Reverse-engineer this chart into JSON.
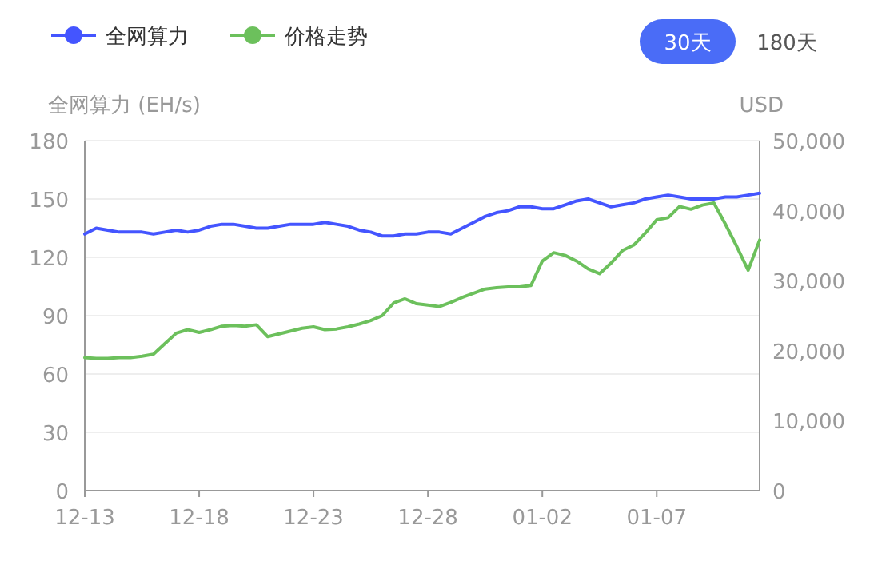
{
  "chart_data": {
    "type": "line",
    "ylabel": "全网算力 (EH/s)",
    "y2label": "USD",
    "annotations": [
      "30天",
      "180天"
    ],
    "categories": [
      "12-13",
      null,
      null,
      null,
      null,
      null,
      null,
      null,
      null,
      null,
      "12-18",
      null,
      null,
      null,
      null,
      null,
      null,
      null,
      null,
      null,
      "12-23",
      null,
      null,
      null,
      null,
      null,
      null,
      null,
      null,
      null,
      "12-28",
      null,
      null,
      null,
      null,
      null,
      null,
      null,
      null,
      null,
      "01-02",
      null,
      null,
      null,
      null,
      null,
      null,
      null,
      null,
      null,
      "01-07",
      null,
      null,
      null,
      null,
      null,
      null,
      null,
      null,
      null
    ],
    "ylim": [
      0,
      180
    ],
    "yticks": [
      0,
      30,
      60,
      90,
      120,
      150,
      180
    ],
    "y2lim": [
      0,
      50000
    ],
    "y2ticks": [
      {
        "value": 0,
        "label": "0"
      },
      {
        "value": 10000,
        "label": "10,000"
      },
      {
        "value": 20000,
        "label": "20,000"
      },
      {
        "value": 30000,
        "label": "30,000"
      },
      {
        "value": 40000,
        "label": "40,000"
      },
      {
        "value": 50000,
        "label": "50,000"
      }
    ],
    "grid": "y",
    "legend": "top left",
    "series": [
      {
        "name": "全网算力",
        "color": "#4455ff",
        "values": [
          132,
          135,
          134,
          133,
          133,
          133,
          132,
          133,
          134,
          133,
          134,
          136,
          137,
          137,
          136,
          135,
          135,
          136,
          137,
          137,
          137,
          138,
          137,
          136,
          134,
          133,
          131,
          131,
          132,
          132,
          133,
          133,
          132,
          135,
          138,
          141,
          143,
          144,
          146,
          146,
          145,
          145,
          147,
          149,
          150,
          148,
          146,
          147,
          148,
          150,
          151,
          152,
          151,
          150,
          150,
          150,
          151,
          151,
          152,
          153
        ]
      },
      {
        "name": "价格走势",
        "color": "#6cc05c",
        "axis": "y2",
        "values": [
          19000,
          18900,
          18900,
          19000,
          19000,
          19200,
          19500,
          21000,
          22500,
          23000,
          22600,
          23000,
          23500,
          23600,
          23500,
          23700,
          22000,
          22400,
          22800,
          23200,
          23400,
          23000,
          23100,
          23400,
          23800,
          24300,
          25000,
          26800,
          27400,
          26700,
          26500,
          26300,
          26900,
          27600,
          28200,
          28800,
          29000,
          29100,
          29100,
          29300,
          32800,
          34000,
          33600,
          32800,
          31700,
          31000,
          32500,
          34300,
          35100,
          36800,
          38700,
          39000,
          40600,
          40200,
          40800,
          41100,
          38100,
          34900,
          31500,
          35800
        ]
      }
    ]
  }
}
